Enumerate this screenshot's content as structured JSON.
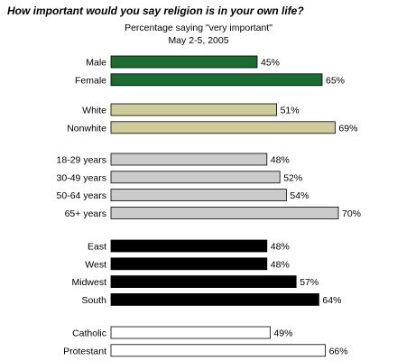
{
  "chart_data": {
    "type": "bar",
    "orientation": "horizontal",
    "title": "How important would you say religion is in your own life?",
    "subtitle": "Percentage saying \"very important\"",
    "date": "May 2-5, 2005",
    "value_suffix": "%",
    "xlim": [
      0,
      100
    ],
    "grid": false,
    "groups": [
      {
        "color": "#1b6b33",
        "categories": [
          "Male",
          "Female"
        ],
        "values": [
          45,
          65
        ],
        "labels": [
          "45%",
          "65%"
        ]
      },
      {
        "color": "#cfcc9c",
        "categories": [
          "White",
          "Nonwhite"
        ],
        "values": [
          51,
          69
        ],
        "labels": [
          "51%",
          "69%"
        ]
      },
      {
        "color": "#cbcbcb",
        "categories": [
          "18-29 years",
          "30-49 years",
          "50-64 years",
          "65+ years"
        ],
        "values": [
          48,
          52,
          54,
          70
        ],
        "labels": [
          "48%",
          "52%",
          "54%",
          "70%"
        ]
      },
      {
        "color": "#000000",
        "categories": [
          "East",
          "West",
          "Midwest",
          "South"
        ],
        "values": [
          48,
          48,
          57,
          64
        ],
        "labels": [
          "48%",
          "48%",
          "57%",
          "64%"
        ]
      },
      {
        "color": "#ffffff",
        "categories": [
          "Catholic",
          "Protestant"
        ],
        "values": [
          49,
          66
        ],
        "labels": [
          "49%",
          "66%"
        ]
      }
    ]
  }
}
